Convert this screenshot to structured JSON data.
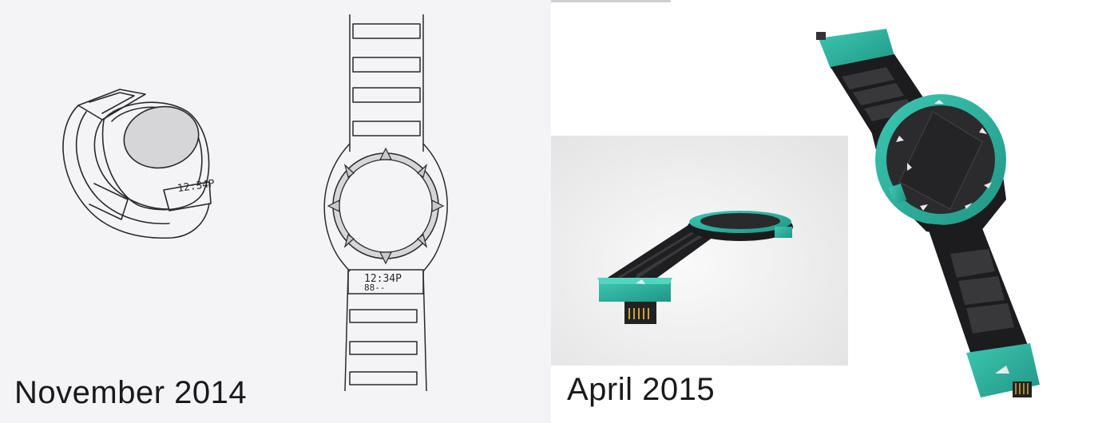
{
  "captions": {
    "left": "November 2014",
    "right": "April 2015"
  },
  "sketch": {
    "small_watch_display": "12:34P",
    "main_watch_display_top": "12:34P",
    "main_watch_display_bottom": "88--"
  },
  "colors": {
    "accent_teal": "#2fb8a3",
    "strap_black": "#1c1c1e",
    "sketch_line": "#2a2a2a",
    "sketch_grey": "#d6d6d8"
  },
  "icons": {
    "usb_connector": "usb-connector-icon",
    "arrow_logo": "arrow-logo-icon"
  }
}
